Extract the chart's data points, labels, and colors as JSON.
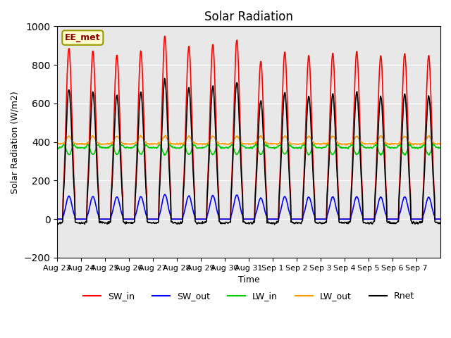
{
  "title": "Solar Radiation",
  "ylabel": "Solar Radiation (W/m2)",
  "xlabel": "Time",
  "ylim": [
    -200,
    1000
  ],
  "annotation_text": "EE_met",
  "x_tick_labels": [
    "Aug 23",
    "Aug 24",
    "Aug 25",
    "Aug 26",
    "Aug 27",
    "Aug 28",
    "Aug 29",
    "Aug 30",
    "Aug 31",
    "Sep 1",
    "Sep 2",
    "Sep 3",
    "Sep 4",
    "Sep 5",
    "Sep 6",
    "Sep 7"
  ],
  "series": {
    "SW_in": {
      "color": "#ff0000",
      "lw": 1.2
    },
    "SW_out": {
      "color": "#0000ff",
      "lw": 1.2
    },
    "LW_in": {
      "color": "#00cc00",
      "lw": 1.2
    },
    "LW_out": {
      "color": "#ff9900",
      "lw": 1.2
    },
    "Rnet": {
      "color": "#000000",
      "lw": 1.2
    }
  },
  "n_days": 16,
  "pts_per_day": 48,
  "bg_color": "#e8e8e8",
  "fig_bg": "#ffffff",
  "sw_in_peaks": [
    890,
    870,
    850,
    870,
    950,
    900,
    905,
    930,
    820,
    870,
    850,
    860,
    870,
    850,
    860,
    850
  ]
}
